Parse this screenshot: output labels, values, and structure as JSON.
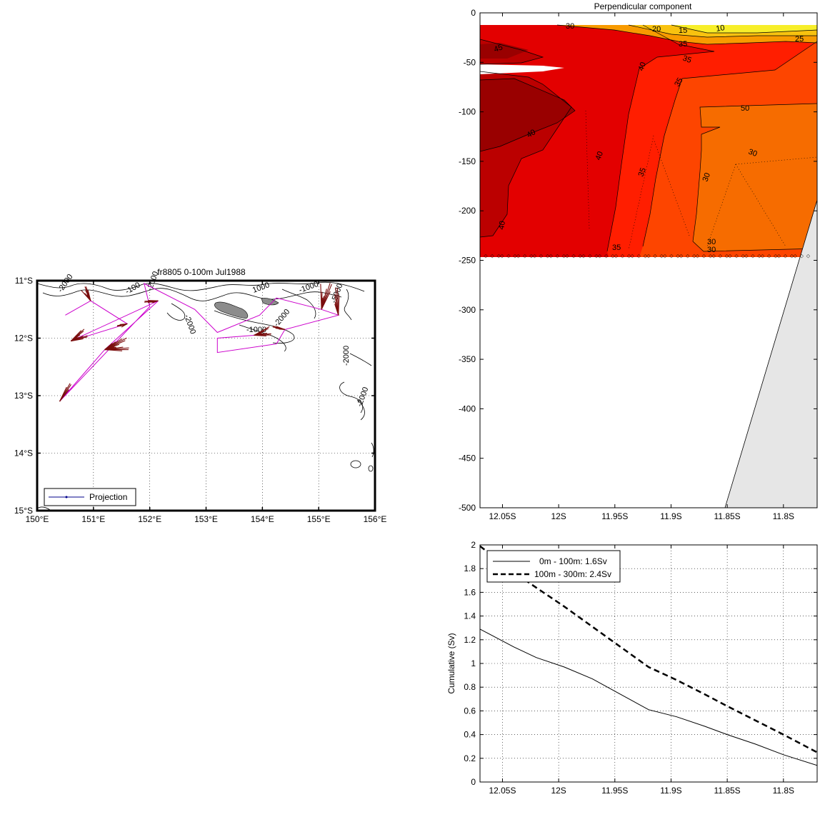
{
  "colors": {
    "c10": "#f7ee29",
    "c15": "#f8c20f",
    "c20": "#f89a00",
    "c25": "#f66c00",
    "c30": "#fd4500",
    "c35": "#ff1e00",
    "c40": "#e30000",
    "c45": "#bb0000",
    "c50": "#990000",
    "bathy": "#e6e6e6",
    "projection": "#cc00cc",
    "arrows": "#7a0d0d",
    "land": "#8c8c8c"
  },
  "chart_data": [
    {
      "type": "map",
      "title": "fr8805 0-100m Jul1988",
      "xlim": [
        150,
        156
      ],
      "ylim": [
        -15,
        -11
      ],
      "x_ticks": [
        "150°E",
        "151°E",
        "152°E",
        "153°E",
        "154°E",
        "155°E",
        "156°E"
      ],
      "y_ticks": [
        "11°S",
        "12°S",
        "13°S",
        "14°S",
        "15°S"
      ],
      "grid": true,
      "legend": {
        "position": "bottom-left",
        "entries": [
          "Projection"
        ]
      },
      "contour_labels": [
        "-2000",
        "-100",
        "-2000",
        "1000",
        "-1000",
        "-5000",
        "-2000",
        "-1000",
        "-2000",
        "-2000",
        "-2000"
      ],
      "projection_track": [
        [
          150.5,
          -11.6
        ],
        [
          150.95,
          -11.35
        ],
        [
          151.6,
          -11.75
        ],
        [
          150.6,
          -12.05
        ],
        [
          152.15,
          -11.35
        ],
        [
          151.2,
          -12.2
        ],
        [
          150.4,
          -13.1
        ],
        [
          152.0,
          -11.45
        ],
        [
          151.9,
          -11.05
        ],
        [
          152.8,
          -11.5
        ],
        [
          153.2,
          -11.9
        ],
        [
          153.95,
          -11.6
        ],
        [
          154.25,
          -11.3
        ],
        [
          155.05,
          -11.5
        ],
        [
          155.35,
          -11.6
        ],
        [
          154.4,
          -11.85
        ],
        [
          154.25,
          -12.1
        ],
        [
          153.2,
          -12.25
        ],
        [
          153.2,
          -12.0
        ],
        [
          153.85,
          -11.95
        ]
      ]
    },
    {
      "type": "heatmap",
      "title": "Perpendicular component",
      "x_ticks": [
        "12.05S",
        "12S",
        "11.95S",
        "11.9S",
        "11.85S",
        "11.8S"
      ],
      "y_ticks": [
        "0",
        "-50",
        "-100",
        "-150",
        "-200",
        "-250",
        "-300",
        "-350",
        "-400",
        "-450",
        "-500"
      ],
      "xlim": [
        -12.07,
        -11.77
      ],
      "ylim": [
        -500,
        0
      ],
      "contour_levels": [
        10,
        15,
        20,
        25,
        30,
        35,
        40,
        45,
        50
      ],
      "contour_labels": [
        "10",
        "15",
        "20",
        "25",
        "30",
        "35",
        "35",
        "40",
        "40",
        "40",
        "45",
        "50",
        "30",
        "30",
        "35",
        "40",
        "30",
        "30",
        "35",
        "35"
      ]
    },
    {
      "type": "line",
      "xlabel": "",
      "ylabel": "Cumulative (Sv)",
      "x_ticks": [
        "12.05S",
        "12S",
        "11.95S",
        "11.9S",
        "11.85S",
        "11.8S"
      ],
      "y_ticks": [
        "0",
        "0.2",
        "0.4",
        "0.6",
        "0.8",
        "1",
        "1.2",
        "1.4",
        "1.6",
        "1.8",
        "2"
      ],
      "xlim": [
        -12.07,
        -11.77
      ],
      "ylim": [
        0,
        2
      ],
      "grid": true,
      "legend": {
        "position": "top-left"
      },
      "series": [
        {
          "name": "0m - 100m:  1.6Sv",
          "style": "solid",
          "x": [
            -12.07,
            -12.04,
            -12.02,
            -11.995,
            -11.97,
            -11.945,
            -11.92,
            -11.895,
            -11.87,
            -11.85,
            -11.825,
            -11.8,
            -11.77
          ],
          "y": [
            1.29,
            1.14,
            1.05,
            0.97,
            0.87,
            0.74,
            0.61,
            0.55,
            0.47,
            0.4,
            0.32,
            0.23,
            0.14
          ]
        },
        {
          "name": "100m - 300m:  2.4Sv",
          "style": "dashed",
          "x": [
            -12.07,
            -12.04,
            -12.02,
            -11.995,
            -11.97,
            -11.945,
            -11.92,
            -11.895,
            -11.87,
            -11.85,
            -11.825,
            -11.8,
            -11.77
          ],
          "y": [
            1.99,
            1.77,
            1.64,
            1.48,
            1.31,
            1.14,
            0.97,
            0.86,
            0.74,
            0.64,
            0.52,
            0.4,
            0.25
          ]
        }
      ]
    }
  ]
}
